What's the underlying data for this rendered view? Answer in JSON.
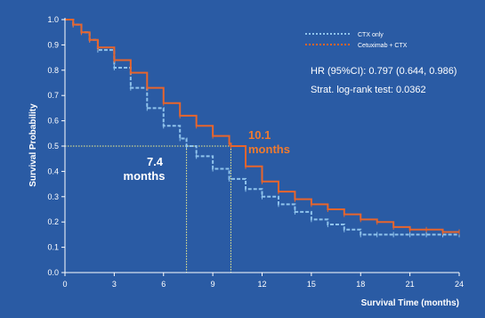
{
  "colors": {
    "background": "#2a5ba4",
    "plot_background": "#2d62ad",
    "axis": "#ffffff",
    "ctx_only": "#8fc3ec",
    "cetuximab_ctx": "#e8652c",
    "guide": "#f2f08a"
  },
  "chart_data": {
    "type": "line",
    "xlabel": "Survival Time (months)",
    "ylabel": "Survival Probability",
    "xlim": [
      0,
      24
    ],
    "ylim": [
      0,
      1
    ],
    "x_ticks": [
      0,
      3,
      6,
      9,
      12,
      15,
      18,
      21,
      24
    ],
    "x_tick_labels": [
      "0",
      "3",
      "6",
      "9",
      "12",
      "15",
      "18",
      "21",
      "24"
    ],
    "y_ticks": [
      0,
      0.1,
      0.2,
      0.3,
      0.4,
      0.5,
      0.6,
      0.7,
      0.8,
      0.9,
      1.0
    ],
    "y_tick_labels": [
      "0.0",
      "0.1",
      "0.2",
      "0.3",
      "0.4",
      "0.5",
      "0.6",
      "0.7",
      "0.8",
      "0.9",
      "1.0"
    ],
    "legend_position": "top-right",
    "legend": [
      "CTX only",
      "Cetuximab + CTX"
    ],
    "series": [
      {
        "name": "CTX only",
        "color": "#8fc3ec",
        "style": "dashed",
        "x": [
          0,
          0.5,
          1,
          1.5,
          2,
          3,
          4,
          5,
          6,
          7,
          7.4,
          8,
          9,
          10,
          11,
          12,
          13,
          14,
          15,
          16,
          17,
          18,
          19,
          20,
          21,
          22,
          23,
          24
        ],
        "y": [
          1.0,
          0.98,
          0.95,
          0.92,
          0.88,
          0.81,
          0.73,
          0.65,
          0.58,
          0.53,
          0.5,
          0.46,
          0.41,
          0.37,
          0.33,
          0.3,
          0.27,
          0.24,
          0.21,
          0.19,
          0.17,
          0.15,
          0.15,
          0.15,
          0.15,
          0.15,
          0.15,
          0.15
        ]
      },
      {
        "name": "Cetuximab + CTX",
        "color": "#e8652c",
        "style": "solid",
        "x": [
          0,
          0.5,
          1,
          1.5,
          2,
          3,
          4,
          5,
          6,
          7,
          8,
          9,
          10,
          10.1,
          11,
          12,
          13,
          14,
          15,
          16,
          17,
          18,
          19,
          20,
          21,
          22,
          23,
          24
        ],
        "y": [
          1.0,
          0.98,
          0.95,
          0.92,
          0.89,
          0.84,
          0.79,
          0.73,
          0.67,
          0.62,
          0.58,
          0.54,
          0.51,
          0.5,
          0.42,
          0.36,
          0.32,
          0.29,
          0.27,
          0.25,
          0.23,
          0.21,
          0.2,
          0.18,
          0.17,
          0.17,
          0.16,
          0.16
        ]
      }
    ],
    "median_line_y": 0.5,
    "median_ctx_x": 7.4,
    "median_cetux_x": 10.1,
    "annotations": {
      "ctx_median_value": "7.4",
      "ctx_median_unit": "months",
      "cetux_median_value": "10.1",
      "cetux_median_unit": "months",
      "hr_text": "HR (95%CI): 0.797 (0.644, 0.986)",
      "logrank_text": "Strat. log-rank test: 0.0362"
    }
  }
}
